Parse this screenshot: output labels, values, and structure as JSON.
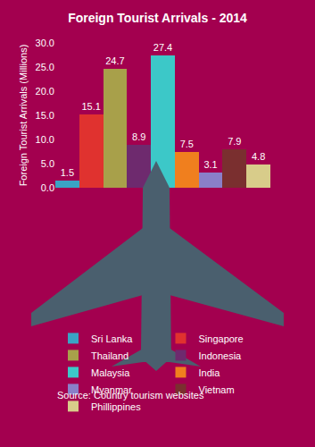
{
  "chart_data": {
    "type": "bar",
    "title": "Foreign Tourist Arrivals - 2014",
    "y_label": "Foreign Tourist Arrivals (Millions)",
    "categories": [
      "Sri Lanka",
      "Singapore",
      "Thailand",
      "Indonesia",
      "Malaysia",
      "India",
      "Myanmar",
      "Vietnam",
      "Phillippines"
    ],
    "values": [
      1.5,
      15.1,
      24.7,
      8.9,
      27.4,
      7.5,
      3.1,
      7.9,
      4.8
    ],
    "colors": [
      "#3aa3c4",
      "#e0322f",
      "#a8a04a",
      "#6e2a6e",
      "#3cc8c8",
      "#f07f1e",
      "#8a7fc8",
      "#7a2f2f",
      "#d8cc8a"
    ],
    "ylim": [
      0,
      30
    ],
    "yticks": [
      {
        "value": 0,
        "label": "0.0"
      },
      {
        "value": 5,
        "label": "5.0"
      },
      {
        "value": 10,
        "label": "10.0"
      },
      {
        "value": 15,
        "label": "15.0"
      },
      {
        "value": 20,
        "label": "20.0"
      },
      {
        "value": 25,
        "label": "25.0"
      },
      {
        "value": 30,
        "label": "30.0"
      }
    ],
    "grid": false,
    "data_labels": true,
    "tick_labels": "y",
    "legend": "bottom",
    "annotations": [
      "Source: Country tourism websites"
    ]
  }
}
